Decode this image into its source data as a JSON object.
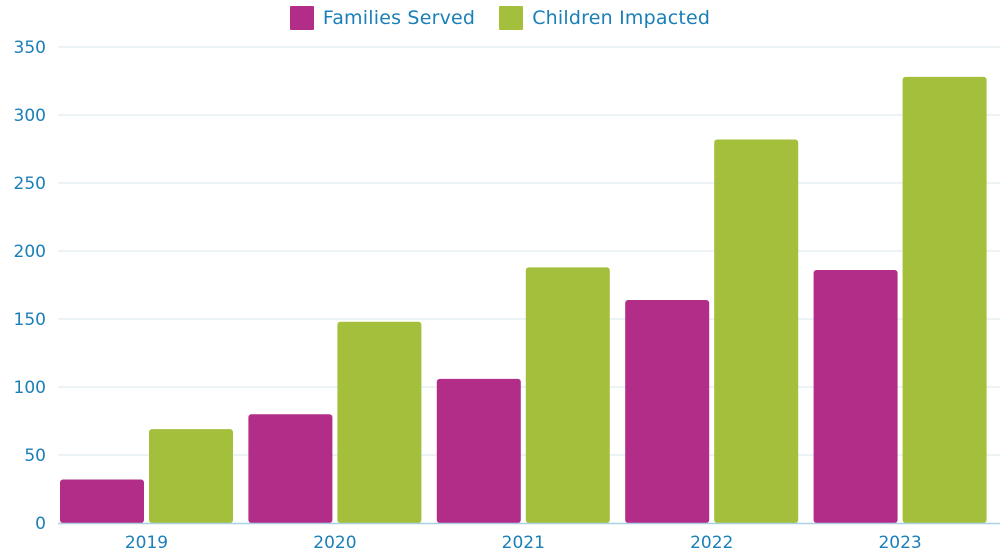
{
  "colors": {
    "families": "#b22d87",
    "children": "#a3bf3b",
    "text": "#1a7fb8",
    "grid": "#d7e7ee",
    "axis": "#a9d1e2"
  },
  "chart_data": {
    "type": "bar",
    "categories": [
      "2019",
      "2020",
      "2021",
      "2022",
      "2023"
    ],
    "series": [
      {
        "name": "Families Served",
        "values": [
          32,
          80,
          106,
          164,
          186
        ]
      },
      {
        "name": "Children Impacted",
        "values": [
          69,
          148,
          188,
          282,
          328
        ]
      }
    ],
    "ylim": [
      0,
      350
    ],
    "yticks": [
      "0",
      "50",
      "100",
      "150",
      "200",
      "250",
      "300",
      "350"
    ],
    "grid": true,
    "legend": "top-center"
  }
}
